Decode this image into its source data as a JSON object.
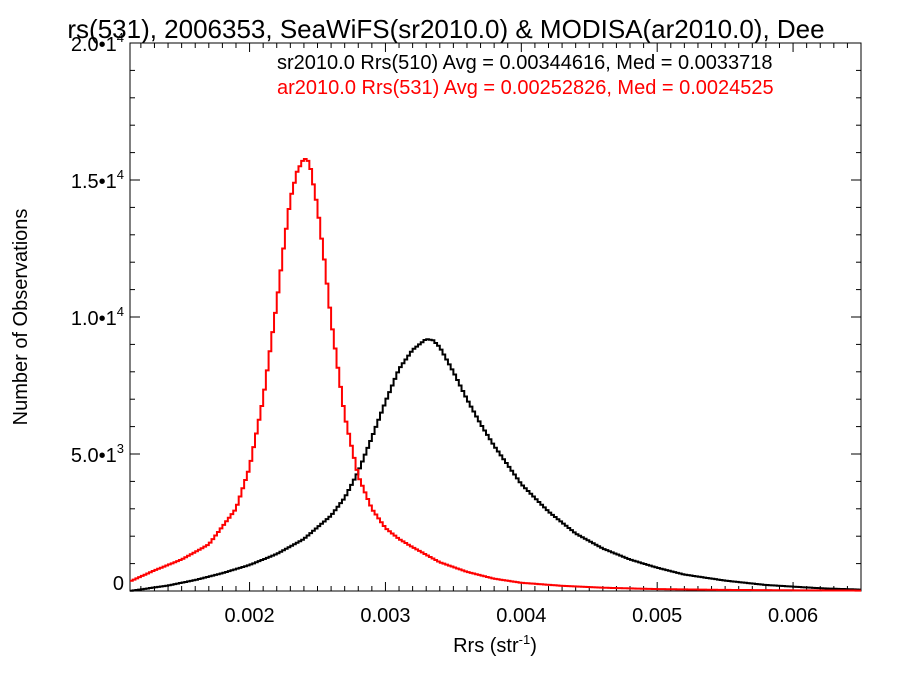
{
  "chart_data": {
    "type": "line",
    "title": "rs(531), 2006353, SeaWiFS(sr2010.0) & MODISA(ar2010.0), Dee",
    "xlabel": "Rrs (str",
    "xlabel_sup": "-1",
    "xlabel_tail": ")",
    "ylabel": "Number of Observations",
    "xlim": [
      0.00112,
      0.0065
    ],
    "ylim": [
      0,
      20000
    ],
    "xticks": [
      {
        "value": 0.002,
        "label": "0.002"
      },
      {
        "value": 0.003,
        "label": "0.003"
      },
      {
        "value": 0.004,
        "label": "0.004"
      },
      {
        "value": 0.005,
        "label": "0.005"
      },
      {
        "value": 0.006,
        "label": "0.006"
      }
    ],
    "yticks": [
      {
        "value": 0,
        "mant": "0",
        "sup": ""
      },
      {
        "value": 5000,
        "mant": "5.0•1",
        "sup": "3"
      },
      {
        "value": 10000,
        "mant": "1.0•1",
        "sup": "4"
      },
      {
        "value": 15000,
        "mant": "1.5•1",
        "sup": "4"
      },
      {
        "value": 20000,
        "mant": "2.0•1",
        "sup": "4"
      }
    ],
    "legend": [
      {
        "text": "sr2010.0 Rrs(510) Avg = 0.00344616, Med = 0.0033718",
        "color": "#000000"
      },
      {
        "text": "ar2010.0 Rrs(531) Avg = 0.00252826, Med = 0.0024525",
        "color": "#ff0000"
      }
    ],
    "series": [
      {
        "color": "#000000",
        "x": [
          0.00112,
          0.0014,
          0.0016,
          0.0018,
          0.002,
          0.0022,
          0.0024,
          0.0026,
          0.0027,
          0.0028,
          0.0029,
          0.003,
          0.0031,
          0.0032,
          0.00325,
          0.0033,
          0.00335,
          0.0034,
          0.0035,
          0.0036,
          0.0037,
          0.0038,
          0.0039,
          0.004,
          0.0042,
          0.0044,
          0.0046,
          0.0048,
          0.005,
          0.0052,
          0.0055,
          0.0058,
          0.0062,
          0.0065
        ],
        "y": [
          0,
          200,
          400,
          650,
          950,
          1350,
          1900,
          2750,
          3400,
          4350,
          5600,
          6900,
          8100,
          8800,
          9000,
          9200,
          9150,
          8900,
          8000,
          7000,
          6100,
          5300,
          4600,
          3900,
          2900,
          2100,
          1550,
          1150,
          850,
          600,
          380,
          220,
          100,
          50
        ]
      },
      {
        "color": "#ff0000",
        "x": [
          0.00112,
          0.0013,
          0.0015,
          0.0017,
          0.0019,
          0.002,
          0.0021,
          0.0022,
          0.00225,
          0.0023,
          0.00235,
          0.0024,
          0.00243,
          0.00245,
          0.0025,
          0.00255,
          0.0026,
          0.0027,
          0.0028,
          0.0029,
          0.003,
          0.0031,
          0.0032,
          0.0034,
          0.0036,
          0.0038,
          0.004,
          0.0043,
          0.0046,
          0.005,
          0.0055,
          0.006,
          0.0065
        ],
        "y": [
          350,
          750,
          1150,
          1700,
          3000,
          4500,
          7000,
          10500,
          12500,
          14300,
          15300,
          15800,
          15700,
          15400,
          14000,
          12100,
          9900,
          6400,
          4200,
          3000,
          2300,
          1900,
          1600,
          1050,
          700,
          450,
          300,
          190,
          120,
          70,
          40,
          25,
          15
        ]
      }
    ]
  }
}
